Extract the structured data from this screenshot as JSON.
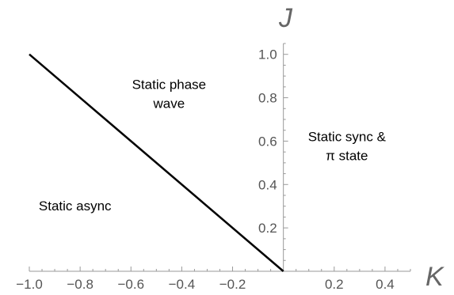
{
  "chart_data": {
    "type": "line",
    "xlabel": "K",
    "ylabel": "J",
    "xlim": [
      -1.0,
      0.5
    ],
    "ylim": [
      0,
      1.05
    ],
    "x_ticks": [
      {
        "value": -1.0,
        "label": "−1.0"
      },
      {
        "value": -0.8,
        "label": "−0.8"
      },
      {
        "value": -0.6,
        "label": "−0.6"
      },
      {
        "value": -0.4,
        "label": "−0.4"
      },
      {
        "value": -0.2,
        "label": "−0.2"
      },
      {
        "value": 0.2,
        "label": "0.2"
      },
      {
        "value": 0.4,
        "label": "0.4"
      }
    ],
    "y_ticks": [
      {
        "value": 0.2,
        "label": "0.2"
      },
      {
        "value": 0.4,
        "label": "0.4"
      },
      {
        "value": 0.6,
        "label": "0.6"
      },
      {
        "value": 0.8,
        "label": "0.8"
      },
      {
        "value": 1.0,
        "label": "1.0"
      }
    ],
    "series": [
      {
        "x": [
          -1.0,
          0.0
        ],
        "y": [
          1.0,
          0.0
        ]
      }
    ],
    "annotations": [
      {
        "lines": [
          "Static phase",
          "wave"
        ],
        "x": -0.45,
        "y": 0.84
      },
      {
        "lines": [
          "Static sync &",
          "π state"
        ],
        "x": 0.25,
        "y": 0.6
      },
      {
        "lines": [
          "Static async"
        ],
        "x": -0.82,
        "y": 0.28
      }
    ],
    "grid": false,
    "line_color": "#000000",
    "axis_color": "#999999"
  }
}
